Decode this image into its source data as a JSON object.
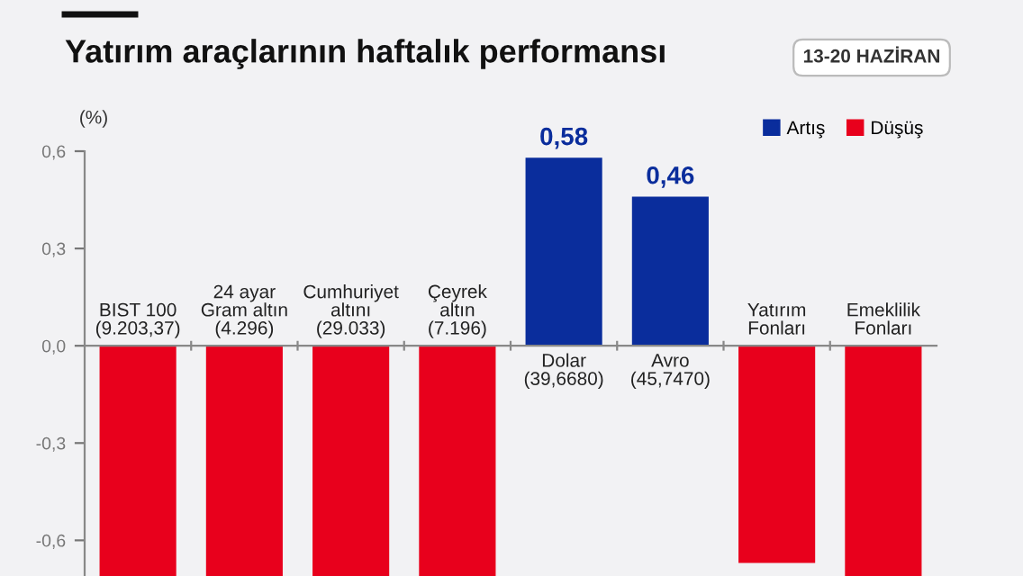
{
  "chart_data": {
    "type": "bar",
    "title": "Yatırım araçlarının haftalık performansı",
    "subtitle": "13-20 HAZİRAN",
    "ylabel": "(%)",
    "categories": [
      "BIST 100\n(9.203,37)",
      "24 ayar\nGram altın\n(4.296)",
      "Cumhuriyet\naltını\n(29.033)",
      "Çeyrek\naltın\n(7.196)",
      "Dolar\n(39,6680)",
      "Avro\n(45,7470)",
      "Yatırım\nFonları",
      "Emeklilik\nFonları"
    ],
    "series": [
      {
        "name": "Artış",
        "color": "#0a2d9c",
        "values": [
          null,
          null,
          null,
          null,
          0.58,
          0.46,
          null,
          null
        ],
        "value_labels": [
          null,
          null,
          null,
          null,
          "0,58",
          "0,46",
          null,
          null
        ]
      },
      {
        "name": "Düşüş",
        "color": "#e8001c",
        "values": [
          -0.71,
          -0.71,
          -0.71,
          -0.71,
          null,
          null,
          -0.67,
          -0.71
        ]
      }
    ],
    "ylim": [
      -0.71,
      0.6
    ],
    "yticks": [
      {
        "value": 0.6,
        "label": "0,6"
      },
      {
        "value": 0.3,
        "label": "0,3"
      },
      {
        "value": 0.0,
        "label": "0,0"
      },
      {
        "value": -0.3,
        "label": "-0,3"
      },
      {
        "value": -0.6,
        "label": "-0,6"
      }
    ],
    "legend": "top right",
    "grid": false
  }
}
